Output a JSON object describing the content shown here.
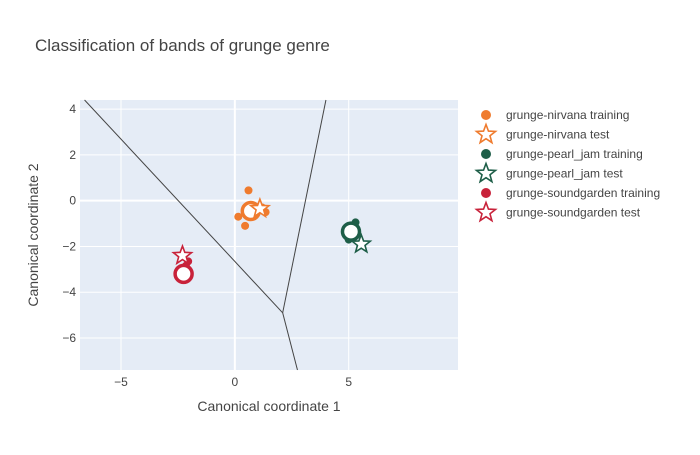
{
  "chart_data": {
    "type": "scatter",
    "title": "Classification of bands of grunge genre",
    "xlabel": "Canonical coordinate 1",
    "ylabel": "Canonical coordinate 2",
    "xlim": [
      -6.8,
      9.8
    ],
    "ylim": [
      -7.4,
      4.4
    ],
    "xticks": [
      -5,
      0,
      5
    ],
    "yticks": [
      4,
      2,
      0,
      -2,
      -4,
      -6
    ],
    "xtick_labels": [
      "−5",
      "0",
      "5"
    ],
    "ytick_labels": [
      "4",
      "2",
      "0",
      "−2",
      "−4",
      "−6"
    ],
    "grid": true,
    "legend_position": "top-right",
    "plot_background": "#e5ecf6",
    "boundaries": [
      {
        "x": [
          -6.6,
          2.1
        ],
        "y": [
          4.4,
          -4.9
        ]
      },
      {
        "x": [
          2.1,
          4.0
        ],
        "y": [
          -4.9,
          4.4
        ]
      },
      {
        "x": [
          2.1,
          2.75
        ],
        "y": [
          -4.9,
          -7.4
        ]
      }
    ],
    "series": [
      {
        "name": "grunge-nirvana training",
        "color": "#ef7b2e",
        "symbol": "circle",
        "points": [
          [
            0.6,
            0.45
          ],
          [
            0.15,
            -0.7
          ],
          [
            0.45,
            -1.1
          ],
          [
            1.35,
            -0.5
          ],
          [
            1.2,
            -0.3
          ],
          [
            0.8,
            -0.5
          ]
        ],
        "centroid": [
          0.7,
          -0.45
        ]
      },
      {
        "name": "grunge-nirvana test",
        "color": "#ef7b2e",
        "symbol": "star",
        "points": [
          [
            1.1,
            -0.35
          ]
        ]
      },
      {
        "name": "grunge-pearl_jam training",
        "color": "#1e5e48",
        "symbol": "circle",
        "points": [
          [
            5.3,
            -0.95
          ],
          [
            5.0,
            -1.7
          ],
          [
            5.15,
            -1.35
          ],
          [
            5.25,
            -1.5
          ]
        ],
        "centroid": [
          5.1,
          -1.35
        ]
      },
      {
        "name": "grunge-pearl_jam test",
        "color": "#1e5e48",
        "symbol": "star",
        "points": [
          [
            5.55,
            -1.9
          ]
        ]
      },
      {
        "name": "grunge-soundgarden training",
        "color": "#c8223a",
        "symbol": "circle",
        "points": [
          [
            -2.05,
            -2.65
          ],
          [
            -2.15,
            -2.85
          ],
          [
            -2.3,
            -3.05
          ],
          [
            -2.45,
            -3.2
          ]
        ],
        "centroid": [
          -2.25,
          -3.2
        ]
      },
      {
        "name": "grunge-soundgarden test",
        "color": "#c8223a",
        "symbol": "star",
        "points": [
          [
            -2.3,
            -2.4
          ]
        ]
      }
    ]
  }
}
